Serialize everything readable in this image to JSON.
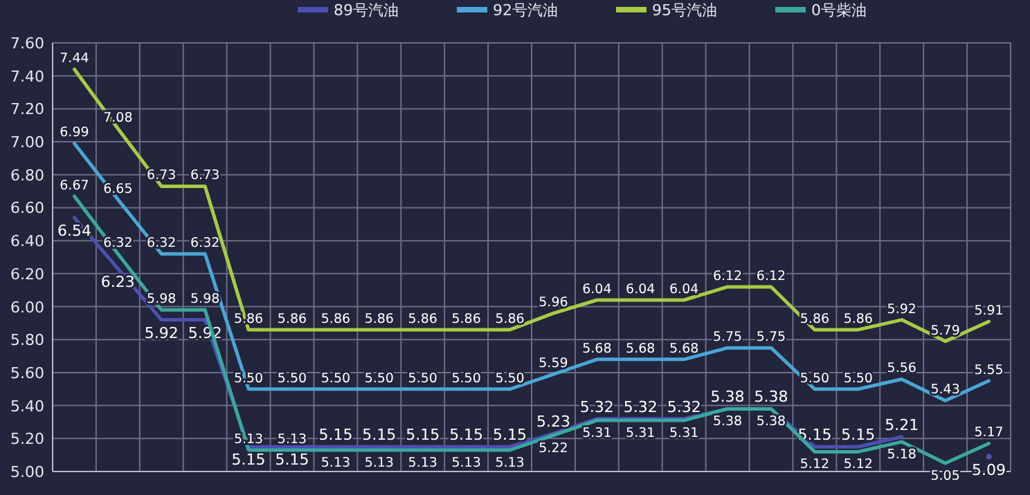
{
  "chart_data": {
    "type": "line",
    "categories": [
      null,
      null,
      null,
      null,
      null,
      null,
      null,
      null,
      null,
      null,
      null,
      null,
      null,
      null,
      null,
      null,
      null,
      null,
      null,
      null,
      null,
      null
    ],
    "series": [
      {
        "name": "89号汽油",
        "color": "#4b50b4",
        "values": [
          6.54,
          6.23,
          5.92,
          5.92,
          5.15,
          5.15,
          5.15,
          5.15,
          5.15,
          5.15,
          5.15,
          5.23,
          5.32,
          5.32,
          5.32,
          5.38,
          5.38,
          5.15,
          5.15,
          5.21,
          null,
          5.09
        ],
        "value_labels": [
          "6.54",
          "6.23",
          "5.92",
          "5.92",
          "5.15",
          "5.15",
          "5.15",
          "5.15",
          "5.15",
          "5.15",
          "5.15",
          "5.23",
          "5.32",
          "5.32",
          "5.32",
          "5.38",
          "5.38",
          "5.15",
          "5.15",
          "5.21",
          null,
          "5.09"
        ]
      },
      {
        "name": "92号汽油",
        "color": "#4aa6d6",
        "values": [
          6.99,
          6.65,
          6.32,
          6.32,
          5.5,
          5.5,
          5.5,
          5.5,
          5.5,
          5.5,
          5.5,
          5.59,
          5.68,
          5.68,
          5.68,
          5.75,
          5.75,
          5.5,
          5.5,
          5.56,
          5.43,
          5.55
        ],
        "value_labels": [
          "6.99",
          "6.65",
          "6.32",
          "6.32",
          "5.50",
          "5.50",
          "5.50",
          "5.50",
          "5.50",
          "5.50",
          "5.50",
          "5.59",
          "5.68",
          "5.68",
          "5.68",
          "5.75",
          "5.75",
          "5.50",
          "5.50",
          "5.56",
          "5.43",
          "5.55"
        ]
      },
      {
        "name": "95号汽油",
        "color": "#a6cc44",
        "values": [
          7.44,
          7.08,
          6.73,
          6.73,
          5.86,
          5.86,
          5.86,
          5.86,
          5.86,
          5.86,
          5.86,
          5.96,
          6.04,
          6.04,
          6.04,
          6.12,
          6.12,
          5.86,
          5.86,
          5.92,
          5.79,
          5.91
        ],
        "value_labels": [
          "7.44",
          "7.08",
          "6.73",
          "6.73",
          "5.86",
          "5.86",
          "5.86",
          "5.86",
          "5.86",
          "5.86",
          "5.86",
          "5.96",
          "6.04",
          "6.04",
          "6.04",
          "6.12",
          "6.12",
          "5.86",
          "5.86",
          "5.92",
          "5.79",
          "5.91"
        ]
      },
      {
        "name": "0号柴油",
        "color": "#3aa89e",
        "values": [
          6.67,
          6.32,
          5.98,
          5.98,
          5.13,
          5.13,
          5.13,
          5.13,
          5.13,
          5.13,
          5.13,
          5.22,
          5.31,
          5.31,
          5.31,
          5.38,
          5.38,
          5.12,
          5.12,
          5.18,
          5.05,
          5.17
        ],
        "value_labels": [
          "6.67",
          "6.32",
          "5.98",
          "5.98",
          "5.13",
          "5.13",
          "5.13",
          "5.13",
          "5.13",
          "5.13",
          "5.13",
          "5.22",
          "5.31",
          "5.31",
          "5.31",
          "5.38",
          "5.38",
          "5.12",
          "5.12",
          "5.18",
          "5.05",
          "5.17"
        ]
      }
    ],
    "ylim": [
      5.0,
      7.6
    ],
    "yticks": [
      {
        "value": 5.0,
        "label": "5.00"
      },
      {
        "value": 5.2,
        "label": "5.20"
      },
      {
        "value": 5.4,
        "label": "5.40"
      },
      {
        "value": 5.6,
        "label": "5.60"
      },
      {
        "value": 5.8,
        "label": "5.80"
      },
      {
        "value": 6.0,
        "label": "6.00"
      },
      {
        "value": 6.2,
        "label": "6.20"
      },
      {
        "value": 6.4,
        "label": "6.40"
      },
      {
        "value": 6.6,
        "label": "6.60"
      },
      {
        "value": 6.8,
        "label": "6.80"
      },
      {
        "value": 7.0,
        "label": "7.00"
      },
      {
        "value": 7.2,
        "label": "7.20"
      },
      {
        "value": 7.4,
        "label": "7.40"
      },
      {
        "value": 7.6,
        "label": "7.60"
      }
    ],
    "grid": true,
    "legend": "top",
    "marker": "none",
    "line_style": "solid"
  }
}
